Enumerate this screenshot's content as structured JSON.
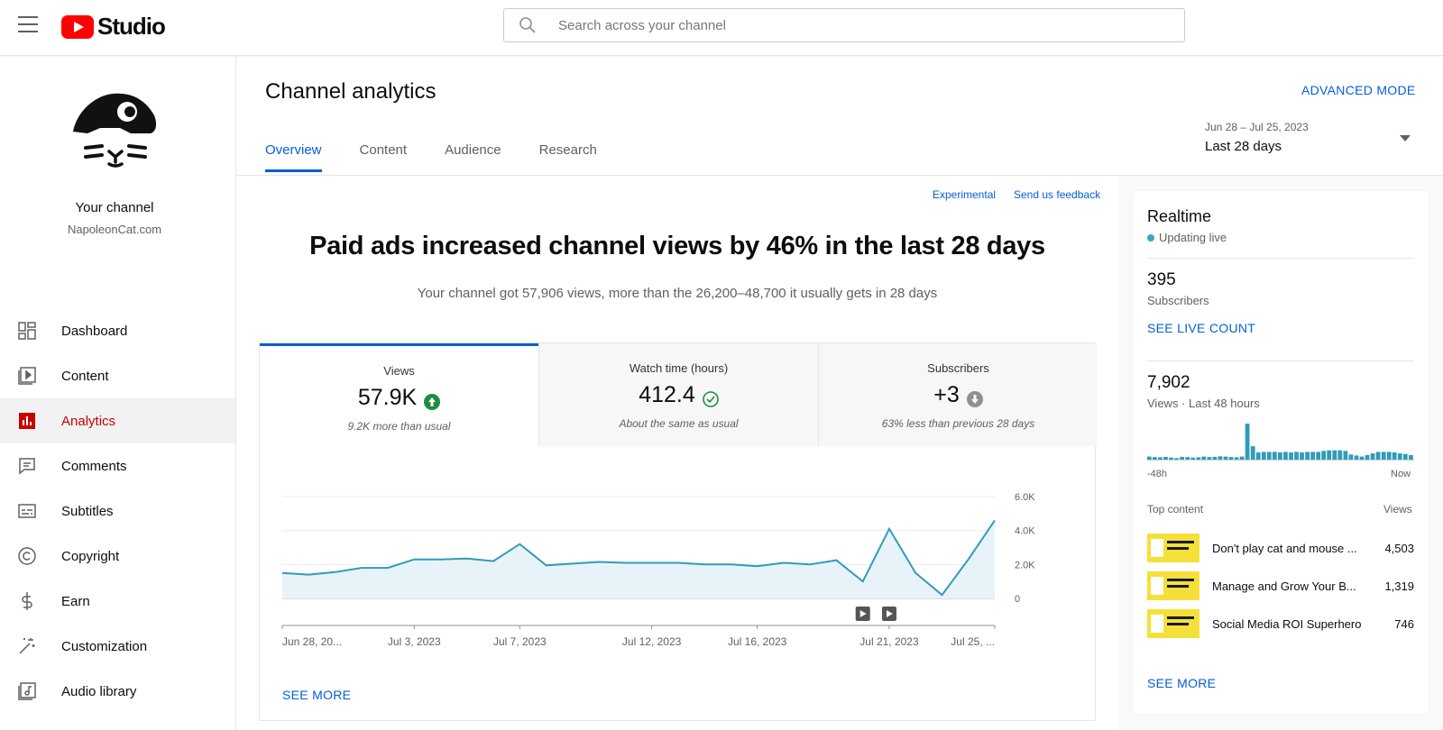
{
  "app": {
    "logo_text": "Studio",
    "search_placeholder": "Search across your channel"
  },
  "sidebar": {
    "channel_title": "Your channel",
    "channel_name": "NapoleonCat.com",
    "items": [
      {
        "label": "Dashboard",
        "icon": "dashboard-icon"
      },
      {
        "label": "Content",
        "icon": "content-icon"
      },
      {
        "label": "Analytics",
        "icon": "analytics-icon",
        "active": true
      },
      {
        "label": "Comments",
        "icon": "comments-icon"
      },
      {
        "label": "Subtitles",
        "icon": "subtitles-icon"
      },
      {
        "label": "Copyright",
        "icon": "copyright-icon"
      },
      {
        "label": "Earn",
        "icon": "earn-icon"
      },
      {
        "label": "Customization",
        "icon": "customization-icon"
      },
      {
        "label": "Audio library",
        "icon": "audio-library-icon"
      }
    ]
  },
  "header": {
    "title": "Channel analytics",
    "advanced_mode": "ADVANCED MODE",
    "tabs": [
      "Overview",
      "Content",
      "Audience",
      "Research"
    ],
    "active_tab": "Overview",
    "date_range": "Jun 28 – Jul 25, 2023",
    "date_label": "Last 28 days"
  },
  "main": {
    "experimental": "Experimental",
    "feedback": "Send us feedback",
    "headline": "Paid ads increased channel views by 46% in the last 28 days",
    "subline": "Your channel got 57,906 views, more than the 26,200–48,700 it usually gets in 28 days",
    "metrics": [
      {
        "label": "Views",
        "value": "57.9K",
        "note": "9.2K more than usual",
        "status": "up"
      },
      {
        "label": "Watch time (hours)",
        "value": "412.4",
        "note": "About the same as usual",
        "status": "same"
      },
      {
        "label": "Subscribers",
        "value": "+3",
        "note": "63% less than previous 28 days",
        "status": "down"
      }
    ],
    "see_more": "SEE MORE"
  },
  "chart_data": {
    "type": "area",
    "x_labels": [
      "Jun 28, 20...",
      "Jul 3, 2023",
      "Jul 7, 2023",
      "Jul 12, 2023",
      "Jul 16, 2023",
      "Jul 21, 2023",
      "Jul 25, ..."
    ],
    "x": [
      "Jun 28",
      "Jun 29",
      "Jun 30",
      "Jul 1",
      "Jul 2",
      "Jul 3",
      "Jul 4",
      "Jul 5",
      "Jul 6",
      "Jul 7",
      "Jul 8",
      "Jul 9",
      "Jul 10",
      "Jul 11",
      "Jul 12",
      "Jul 13",
      "Jul 14",
      "Jul 15",
      "Jul 16",
      "Jul 17",
      "Jul 18",
      "Jul 19",
      "Jul 20",
      "Jul 21",
      "Jul 22",
      "Jul 23",
      "Jul 24",
      "Jul 25"
    ],
    "values": [
      1500,
      1400,
      1550,
      1800,
      1800,
      2300,
      2300,
      2350,
      2200,
      3200,
      1950,
      2050,
      2150,
      2100,
      2100,
      2100,
      2000,
      2000,
      1900,
      2100,
      2000,
      2250,
      1000,
      4100,
      1500,
      200,
      2300,
      4600
    ],
    "y_ticks": [
      "6.0K",
      "4.0K",
      "2.0K",
      "0"
    ],
    "ylim": [
      0,
      6000
    ],
    "series_color": "#2f9cba",
    "fill_color": "#e8f3f9",
    "event_markers": [
      "video-marker-icon",
      "video-marker-icon"
    ]
  },
  "realtime": {
    "title": "Realtime",
    "live": "Updating live",
    "subscribers_value": "395",
    "subscribers_label": "Subscribers",
    "see_live": "SEE LIVE COUNT",
    "views_value": "7,902",
    "views_label": "Views · Last 48 hours",
    "axis_start": "-48h",
    "axis_end": "Now",
    "bars": [
      60,
      50,
      45,
      55,
      40,
      30,
      55,
      50,
      40,
      45,
      60,
      50,
      55,
      65,
      60,
      50,
      45,
      60,
      700,
      260,
      140,
      150,
      150,
      150,
      140,
      150,
      140,
      150,
      140,
      150,
      150,
      150,
      170,
      180,
      180,
      180,
      170,
      100,
      80,
      60,
      90,
      120,
      150,
      150,
      150,
      140,
      120,
      110,
      90
    ],
    "top_content_label": "Top content",
    "views_col": "Views",
    "top_content": [
      {
        "title": "Don't play cat and mouse ...",
        "views": "4,503"
      },
      {
        "title": "Manage and Grow Your B...",
        "views": "1,319"
      },
      {
        "title": "Social Media ROI Superhero",
        "views": "746"
      }
    ],
    "see_more": "SEE MORE"
  }
}
